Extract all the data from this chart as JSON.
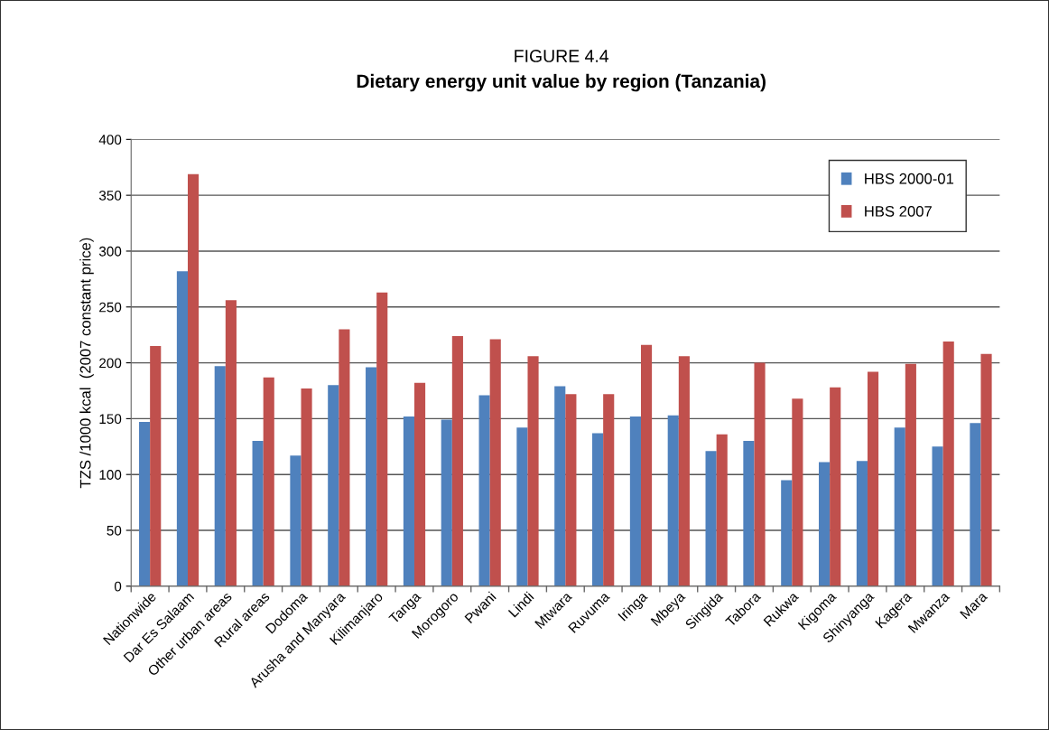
{
  "chart_data": {
    "type": "bar",
    "title": "FIGURE 4.4",
    "subtitle": "Dietary energy unit value by region (Tanzania)",
    "ylabel": "TZS /1000 kcal  (2007 constant price)",
    "categories": [
      "Nationwide",
      "Dar Es Salaam",
      "Other urban areas",
      "Rural areas",
      "Dodoma",
      "Arusha and Manyara",
      "Kilimanjaro",
      "Tanga",
      "Morogoro",
      "Pwani",
      "Lindi",
      "Mtwara",
      "Ruvuma",
      "Iringa",
      "Mbeya",
      "Singida",
      "Tabora",
      "Rukwa",
      "Kigoma",
      "Shinyanga",
      "Kagera",
      "Mwanza",
      "Mara"
    ],
    "series": [
      {
        "name": "HBS 2000-01",
        "color": "#4f81bd",
        "values": [
          147,
          282,
          197,
          130,
          117,
          180,
          196,
          152,
          149,
          171,
          142,
          179,
          137,
          152,
          153,
          121,
          130,
          95,
          111,
          112,
          142,
          125,
          146
        ]
      },
      {
        "name": "HBS 2007",
        "color": "#c0504d",
        "values": [
          215,
          369,
          256,
          187,
          177,
          230,
          263,
          182,
          224,
          221,
          206,
          172,
          172,
          216,
          206,
          136,
          200,
          168,
          178,
          192,
          199,
          219,
          208
        ]
      }
    ],
    "ylim": [
      0,
      400
    ],
    "yticks": [
      0,
      50,
      100,
      150,
      200,
      250,
      300,
      350,
      400
    ],
    "grid": "y",
    "legend": "top right"
  }
}
